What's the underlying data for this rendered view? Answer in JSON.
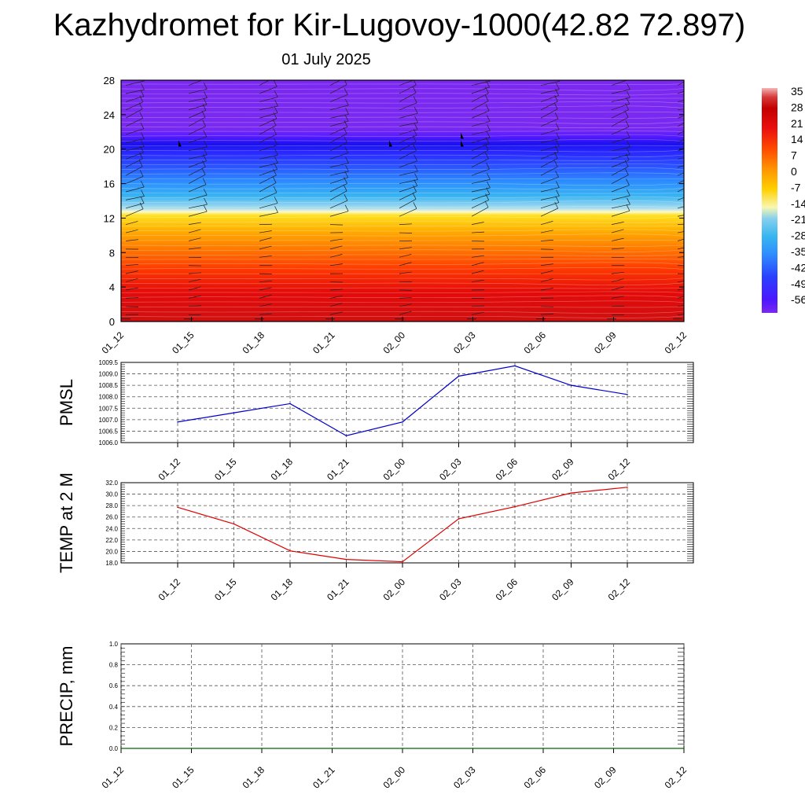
{
  "header": {
    "title": "Kazhydromet for Kir-Lugovoy-1000(42.82 72.897)",
    "subtitle": "01 July 2025"
  },
  "colors": {
    "pmsl_line": "#0000cc",
    "temp_line": "#dd0000",
    "precip_line": "#006600",
    "colorbar_stops": [
      "#7b28f0",
      "#4a18ff",
      "#2a40ff",
      "#2f8cff",
      "#36b6f0",
      "#88d0ec",
      "#f8f7b0",
      "#ffd000",
      "#ff9400",
      "#ff4a00",
      "#ea0f0f",
      "#c40000",
      "#d63a3a",
      "#f4b4b4"
    ]
  },
  "chart_data": [
    {
      "type": "heatmap",
      "name": "cross-section",
      "ylim": [
        0,
        28
      ],
      "yticks": [
        "0",
        "4",
        "8",
        "12",
        "16",
        "20",
        "24",
        "28"
      ],
      "xticks": [
        "01_12",
        "01_15",
        "01_18",
        "01_21",
        "02_00",
        "02_03",
        "02_06",
        "02_09",
        "02_12"
      ],
      "colorbar_labels": [
        "35",
        "28",
        "21",
        "14",
        "7",
        "0",
        "-7",
        "-14",
        "-21",
        "-28",
        "-35",
        "-42",
        "-49",
        "-56"
      ],
      "colorbar_range": [
        -56,
        35
      ],
      "bands": [
        {
          "y0": 0,
          "y1": 6,
          "value": 28
        },
        {
          "y0": 6,
          "y1": 9,
          "value": 14
        },
        {
          "y0": 9,
          "y1": 12.6,
          "value": 0
        },
        {
          "y0": 12.6,
          "y1": 14,
          "value": -14
        },
        {
          "y0": 14,
          "y1": 17,
          "value": -28
        },
        {
          "y0": 17,
          "y1": 19.5,
          "value": -42
        },
        {
          "y0": 19.5,
          "y1": 22,
          "value": -56
        },
        {
          "y0": 22,
          "y1": 28,
          "value": -49
        }
      ]
    },
    {
      "type": "line",
      "ylabel": "PMSL",
      "ylim": [
        1006.0,
        1009.5
      ],
      "yticks": [
        "1006.0",
        "1006.5",
        "1007.0",
        "1007.5",
        "1008.0",
        "1008.5",
        "1009.0",
        "1009.5"
      ],
      "categories": [
        "01_12",
        "01_15",
        "01_18",
        "01_21",
        "02_00",
        "02_03",
        "02_06",
        "02_09",
        "02_12"
      ],
      "values": [
        1006.9,
        1007.3,
        1007.7,
        1006.3,
        1006.9,
        1008.9,
        1009.35,
        1008.5,
        1008.1
      ]
    },
    {
      "type": "line",
      "ylabel": "TEMP at 2 M",
      "ylim": [
        18.0,
        32.0
      ],
      "yticks": [
        "18.0",
        "20.0",
        "22.0",
        "24.0",
        "26.0",
        "28.0",
        "30.0",
        "32.0"
      ],
      "categories": [
        "01_12",
        "01_15",
        "01_18",
        "01_21",
        "02_00",
        "02_03",
        "02_06",
        "02_09",
        "02_12"
      ],
      "values": [
        27.7,
        24.8,
        20.1,
        18.6,
        18.2,
        25.7,
        27.8,
        30.2,
        31.2
      ]
    },
    {
      "type": "line",
      "ylabel": "PRECIP, mm",
      "ylim": [
        0.0,
        1.0
      ],
      "yticks": [
        "0.0",
        "0.2",
        "0.4",
        "0.6",
        "0.8",
        "1.0"
      ],
      "categories": [
        "01_12",
        "01_15",
        "01_18",
        "01_21",
        "02_00",
        "02_03",
        "02_06",
        "02_09",
        "02_12"
      ],
      "values": [
        0,
        0,
        0,
        0,
        0,
        0,
        0,
        0,
        0
      ]
    }
  ]
}
